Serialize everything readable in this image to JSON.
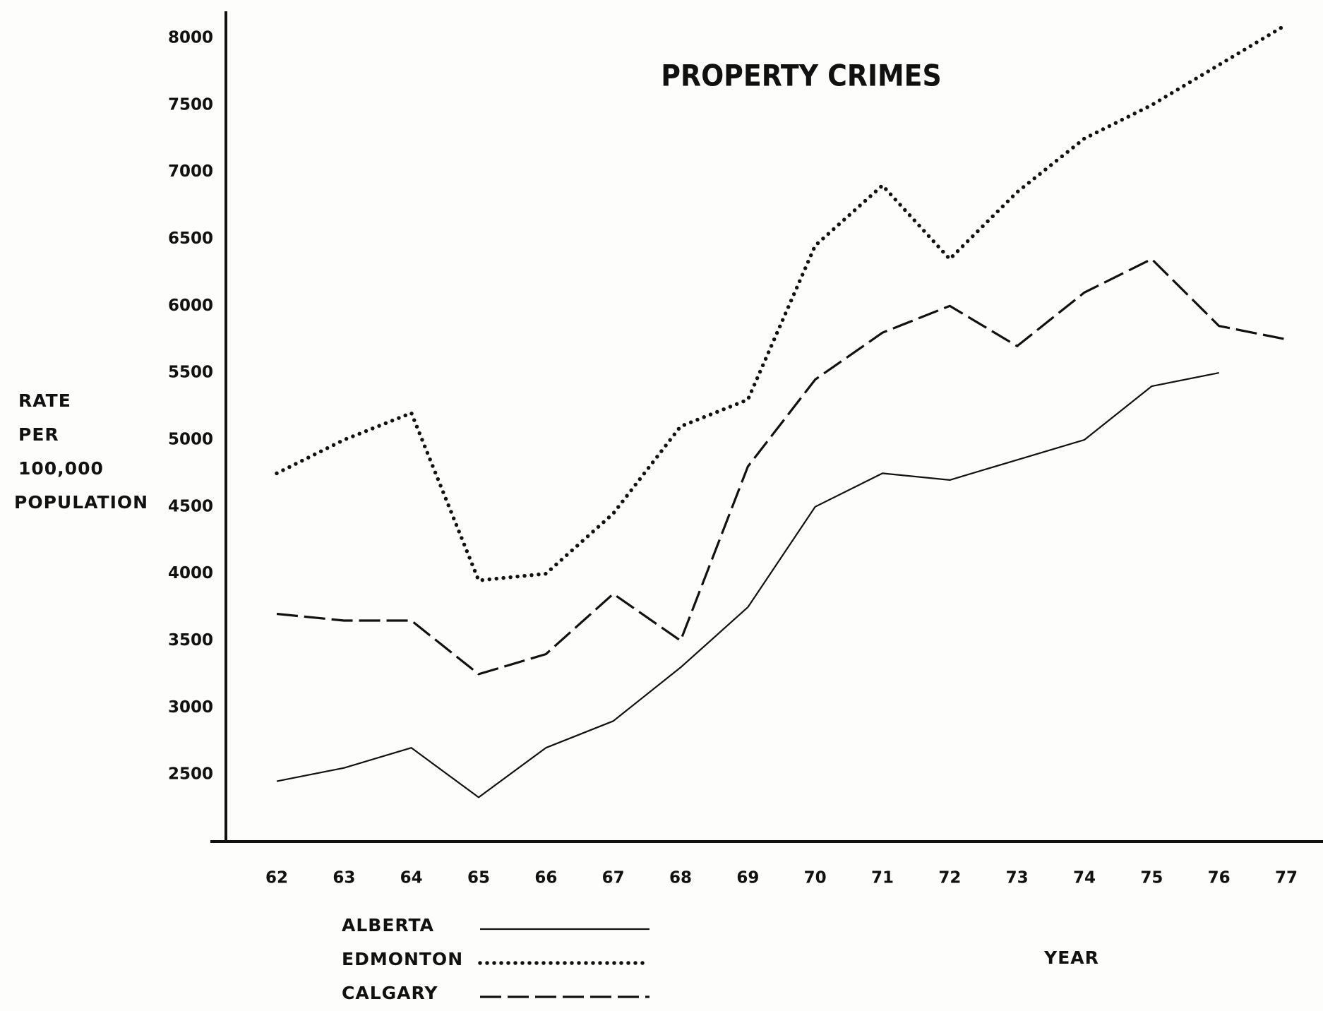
{
  "chart_data": {
    "type": "line",
    "title": "PROPERTY CRIMES",
    "xlabel": "YEAR",
    "ylabel": [
      "RATE",
      "PER",
      "100,000",
      "POPULATION"
    ],
    "categories": [
      "62",
      "63",
      "64",
      "65",
      "66",
      "67",
      "68",
      "69",
      "70",
      "71",
      "72",
      "73",
      "74",
      "75",
      "76",
      "77"
    ],
    "series": [
      {
        "name": "ALBERTA",
        "color": "#111111",
        "style": "solid",
        "values": [
          2450,
          2550,
          2700,
          2330,
          2700,
          2900,
          3300,
          3750,
          4500,
          4750,
          4700,
          4850,
          5000,
          5400,
          5500,
          null
        ]
      },
      {
        "name": "EDMONTON",
        "color": "#111111",
        "style": "dotted",
        "values": [
          4750,
          5000,
          5200,
          3950,
          4000,
          4450,
          5100,
          5300,
          6450,
          6900,
          6350,
          6850,
          7250,
          7500,
          7800,
          8100
        ]
      },
      {
        "name": "CALGARY",
        "color": "#111111",
        "style": "dashed",
        "values": [
          3700,
          3650,
          3650,
          3250,
          3400,
          3850,
          3500,
          4800,
          5450,
          5800,
          6000,
          5700,
          6100,
          6350,
          5850,
          5750
        ]
      }
    ],
    "ylim": [
      2000,
      8200
    ],
    "yticks": [
      2500,
      3000,
      3500,
      4000,
      4500,
      5000,
      5500,
      6000,
      6500,
      7000,
      7500,
      8000
    ],
    "grid": false
  }
}
